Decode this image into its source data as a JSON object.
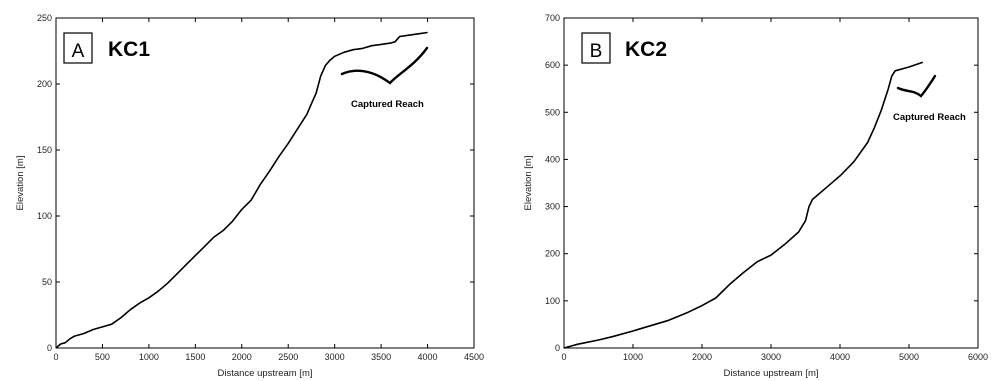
{
  "chart_data": [
    {
      "type": "line",
      "panel_letter": "A",
      "title": "KC1",
      "xlabel": "Distance upstream [m]",
      "ylabel": "Elevation [m]",
      "xlim": [
        0,
        4500
      ],
      "ylim": [
        0,
        250
      ],
      "xticks": [
        0,
        500,
        1000,
        1500,
        2000,
        2500,
        3000,
        3500,
        4000,
        4500
      ],
      "yticks": [
        0,
        50,
        100,
        150,
        200,
        250
      ],
      "annotation": "Captured Reach",
      "series": [
        {
          "x": [
            0,
            50,
            100,
            150,
            200,
            300,
            400,
            500,
            600,
            700,
            800,
            900,
            1000,
            1100,
            1200,
            1300,
            1400,
            1500,
            1600,
            1700,
            1800,
            1900,
            2000,
            2100,
            2200,
            2300,
            2400,
            2500,
            2600,
            2700,
            2750,
            2800,
            2850,
            2900,
            2950,
            3000,
            3100,
            3200,
            3300,
            3400,
            3500,
            3600,
            3650,
            3700,
            3800,
            3900,
            4000
          ],
          "y": [
            0,
            3,
            4,
            7,
            9,
            11,
            14,
            16,
            18,
            23,
            29,
            34,
            38,
            43,
            49,
            56,
            63,
            70,
            77,
            84,
            89,
            96,
            105,
            112,
            124,
            134,
            145,
            155,
            166,
            177,
            185,
            193,
            206,
            214,
            218,
            221,
            224,
            226,
            227,
            229,
            230,
            231,
            232,
            236,
            237,
            238,
            239
          ]
        }
      ]
    },
    {
      "type": "line",
      "panel_letter": "B",
      "title": "KC2",
      "xlabel": "Distance upstream [m]",
      "ylabel": "Elevation [m]",
      "xlim": [
        0,
        6000
      ],
      "ylim": [
        0,
        700
      ],
      "xticks": [
        0,
        1000,
        2000,
        3000,
        4000,
        5000,
        6000
      ],
      "yticks": [
        0,
        100,
        200,
        300,
        400,
        500,
        600,
        700
      ],
      "annotation": "Captured Reach",
      "series": [
        {
          "x": [
            0,
            100,
            200,
            300,
            500,
            700,
            1000,
            1200,
            1500,
            1800,
            2000,
            2200,
            2400,
            2600,
            2800,
            3000,
            3200,
            3400,
            3500,
            3550,
            3600,
            3800,
            4000,
            4200,
            4400,
            4500,
            4600,
            4700,
            4750,
            4800,
            5000,
            5200
          ],
          "y": [
            0,
            4,
            8,
            11,
            17,
            24,
            36,
            45,
            58,
            76,
            90,
            106,
            135,
            160,
            183,
            197,
            220,
            246,
            270,
            300,
            315,
            340,
            365,
            395,
            436,
            468,
            505,
            550,
            577,
            588,
            596,
            606
          ]
        }
      ]
    }
  ]
}
